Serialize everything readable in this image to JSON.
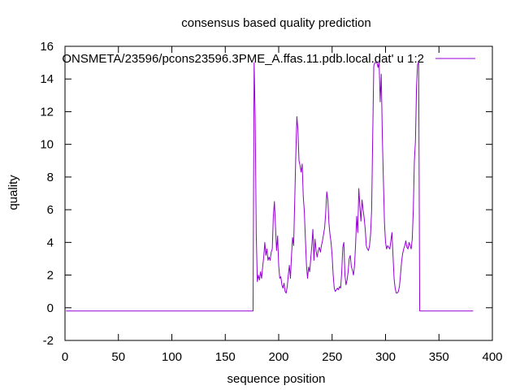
{
  "chart_data": {
    "type": "line",
    "title": "consensus based quality prediction",
    "xlabel": "sequence position",
    "ylabel": "quality",
    "xlim": [
      0,
      400
    ],
    "ylim": [
      -2,
      16
    ],
    "xticks": [
      0,
      50,
      100,
      150,
      200,
      250,
      300,
      350,
      400
    ],
    "yticks": [
      -2,
      0,
      2,
      4,
      6,
      8,
      10,
      12,
      14,
      16
    ],
    "grid": false,
    "legend_position": "top-right",
    "series": [
      {
        "name": "ONSMETA/23596/pcons23596.3PME_A.ffas.11.pdb.local.dat' u 1:2",
        "color": "#9400d3",
        "points": [
          [
            1,
            -0.2
          ],
          [
            176,
            -0.2
          ],
          [
            177,
            15.0
          ],
          [
            178,
            11.8
          ],
          [
            179,
            4.5
          ],
          [
            180,
            1.6
          ],
          [
            181,
            2.0
          ],
          [
            182,
            1.7
          ],
          [
            183,
            2.2
          ],
          [
            184,
            1.8
          ],
          [
            185,
            2.5
          ],
          [
            186,
            3.1
          ],
          [
            187,
            4.0
          ],
          [
            188,
            3.2
          ],
          [
            189,
            3.6
          ],
          [
            190,
            2.9
          ],
          [
            191,
            3.1
          ],
          [
            192,
            2.9
          ],
          [
            193,
            3.4
          ],
          [
            194,
            3.6
          ],
          [
            195,
            5.6
          ],
          [
            196,
            6.5
          ],
          [
            197,
            5.0
          ],
          [
            198,
            3.5
          ],
          [
            199,
            4.4
          ],
          [
            200,
            2.6
          ],
          [
            201,
            1.8
          ],
          [
            202,
            1.9
          ],
          [
            203,
            1.4
          ],
          [
            204,
            1.2
          ],
          [
            205,
            1.5
          ],
          [
            206,
            1.0
          ],
          [
            207,
            0.9
          ],
          [
            208,
            1.3
          ],
          [
            209,
            2.0
          ],
          [
            210,
            2.6
          ],
          [
            211,
            1.8
          ],
          [
            212,
            3.2
          ],
          [
            213,
            4.3
          ],
          [
            214,
            3.8
          ],
          [
            215,
            6.5
          ],
          [
            216,
            9.3
          ],
          [
            217,
            11.7
          ],
          [
            218,
            10.9
          ],
          [
            219,
            9.0
          ],
          [
            220,
            8.7
          ],
          [
            221,
            8.3
          ],
          [
            222,
            8.8
          ],
          [
            223,
            6.8
          ],
          [
            224,
            5.9
          ],
          [
            225,
            4.2
          ],
          [
            226,
            2.6
          ],
          [
            227,
            1.8
          ],
          [
            228,
            2.5
          ],
          [
            229,
            2.2
          ],
          [
            230,
            3.0
          ],
          [
            231,
            3.8
          ],
          [
            232,
            4.8
          ],
          [
            233,
            2.9
          ],
          [
            234,
            4.2
          ],
          [
            235,
            3.5
          ],
          [
            236,
            3.1
          ],
          [
            237,
            3.5
          ],
          [
            238,
            3.7
          ],
          [
            239,
            3.4
          ],
          [
            240,
            3.8
          ],
          [
            241,
            4.1
          ],
          [
            242,
            4.5
          ],
          [
            243,
            4.9
          ],
          [
            244,
            5.8
          ],
          [
            245,
            7.1
          ],
          [
            246,
            6.6
          ],
          [
            247,
            5.2
          ],
          [
            248,
            4.5
          ],
          [
            249,
            4.0
          ],
          [
            250,
            3.2
          ],
          [
            251,
            2.0
          ],
          [
            252,
            1.2
          ],
          [
            253,
            1.0
          ],
          [
            254,
            1.1
          ],
          [
            255,
            1.2
          ],
          [
            256,
            1.1
          ],
          [
            257,
            1.3
          ],
          [
            258,
            1.2
          ],
          [
            259,
            2.2
          ],
          [
            260,
            3.7
          ],
          [
            261,
            4.0
          ],
          [
            262,
            2.0
          ],
          [
            263,
            1.4
          ],
          [
            264,
            1.7
          ],
          [
            265,
            2.2
          ],
          [
            266,
            3.0
          ],
          [
            267,
            3.2
          ],
          [
            268,
            2.5
          ],
          [
            269,
            2.3
          ],
          [
            270,
            2.0
          ],
          [
            271,
            2.6
          ],
          [
            272,
            3.9
          ],
          [
            273,
            5.6
          ],
          [
            274,
            4.6
          ],
          [
            275,
            7.3
          ],
          [
            276,
            6.2
          ],
          [
            277,
            5.3
          ],
          [
            278,
            6.6
          ],
          [
            279,
            6.0
          ],
          [
            280,
            5.5
          ],
          [
            281,
            4.8
          ],
          [
            282,
            3.8
          ],
          [
            283,
            3.6
          ],
          [
            284,
            3.5
          ],
          [
            285,
            3.8
          ],
          [
            286,
            4.5
          ],
          [
            287,
            6.0
          ],
          [
            288,
            10.5
          ],
          [
            289,
            14.8
          ],
          [
            290,
            15.0
          ],
          [
            291,
            15.0
          ],
          [
            292,
            15.0
          ],
          [
            293,
            14.7
          ],
          [
            294,
            15.0
          ],
          [
            295,
            12.6
          ],
          [
            296,
            14.3
          ],
          [
            297,
            10.5
          ],
          [
            298,
            7.8
          ],
          [
            299,
            5.2
          ],
          [
            300,
            4.0
          ],
          [
            301,
            3.6
          ],
          [
            302,
            3.8
          ],
          [
            303,
            3.7
          ],
          [
            304,
            3.6
          ],
          [
            305,
            4.1
          ],
          [
            306,
            4.6
          ],
          [
            307,
            3.2
          ],
          [
            308,
            1.8
          ],
          [
            309,
            1.2
          ],
          [
            310,
            0.9
          ],
          [
            311,
            0.9
          ],
          [
            312,
            1.0
          ],
          [
            313,
            1.3
          ],
          [
            314,
            2.0
          ],
          [
            315,
            2.8
          ],
          [
            316,
            3.3
          ],
          [
            317,
            3.6
          ],
          [
            318,
            3.8
          ],
          [
            319,
            4.1
          ],
          [
            320,
            3.7
          ],
          [
            321,
            3.6
          ],
          [
            322,
            4.0
          ],
          [
            323,
            3.8
          ],
          [
            324,
            3.6
          ],
          [
            325,
            4.2
          ],
          [
            326,
            6.0
          ],
          [
            327,
            9.0
          ],
          [
            328,
            10.2
          ],
          [
            329,
            13.5
          ],
          [
            330,
            14.9
          ],
          [
            331,
            15.0
          ],
          [
            332,
            -0.2
          ],
          [
            382,
            -0.2
          ]
        ]
      }
    ]
  }
}
